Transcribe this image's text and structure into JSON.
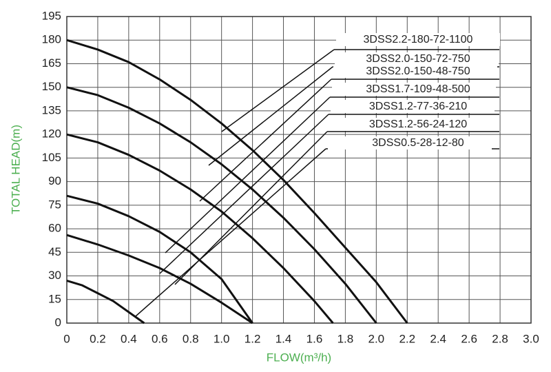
{
  "chart_data": {
    "type": "line",
    "x_label": "FLOW(m³/h)",
    "y_label": "TOTAL HEAD(m)",
    "xlim": [
      0,
      3.0
    ],
    "ylim": [
      0,
      195
    ],
    "xticks": [
      0,
      0.2,
      0.4,
      0.6,
      0.8,
      {
        "value": 1.0,
        "label": "1.0"
      },
      1.2,
      1.4,
      1.6,
      1.8,
      {
        "value": 2.0,
        "label": "2.0"
      },
      2.2,
      2.4,
      2.6,
      2.8,
      {
        "value": 3.0,
        "label": "3.0"
      }
    ],
    "yticks": [
      0,
      15,
      30,
      45,
      60,
      75,
      90,
      105,
      120,
      135,
      150,
      165,
      180,
      195
    ],
    "grid": true,
    "series": [
      {
        "color": "#111111",
        "x": [
          0,
          0.2,
          0.4,
          0.6,
          0.8,
          1.0,
          1.2,
          1.4,
          1.6,
          1.8,
          2.0,
          2.2
        ],
        "values": [
          180,
          174,
          166,
          155,
          142,
          127,
          110,
          91,
          70,
          48,
          26,
          0
        ]
      },
      {
        "color": "#111111",
        "x": [
          0,
          0.2,
          0.4,
          0.6,
          0.8,
          1.0,
          1.2,
          1.4,
          1.6,
          1.8,
          2.0
        ],
        "values": [
          150,
          145,
          137,
          127,
          115,
          101,
          85,
          67,
          47,
          25,
          0
        ]
      },
      {
        "color": "#111111",
        "x": [
          0,
          0.2,
          0.4,
          0.6,
          0.8,
          1.0,
          1.2,
          1.4,
          1.6,
          1.72
        ],
        "values": [
          120,
          115,
          107,
          97,
          85,
          71,
          54,
          35,
          14,
          0
        ]
      },
      {
        "color": "#111111",
        "x": [
          0,
          0.2,
          0.4,
          0.6,
          0.8,
          1.0,
          1.2
        ],
        "values": [
          81,
          76,
          68,
          58,
          45,
          28,
          0
        ]
      },
      {
        "color": "#111111",
        "x": [
          0,
          0.2,
          0.4,
          0.6,
          0.8,
          1.0,
          1.2
        ],
        "values": [
          56,
          50,
          43,
          35,
          25,
          13,
          0
        ]
      },
      {
        "color": "#111111",
        "x": [
          0,
          0.1,
          0.2,
          0.3,
          0.4,
          0.5
        ],
        "values": [
          27,
          24,
          19,
          14,
          7,
          0
        ]
      }
    ],
    "annotations": [
      "3DSS2.2-180-72-1100",
      "3DSS2.0-150-72-750",
      "3DSS2.0-150-48-750",
      "3DSS1.7-109-48-500",
      "3DSS1.2-77-36-210",
      "3DSS1.2-56-24-120",
      "3DSS0.5-28-12-80"
    ]
  }
}
